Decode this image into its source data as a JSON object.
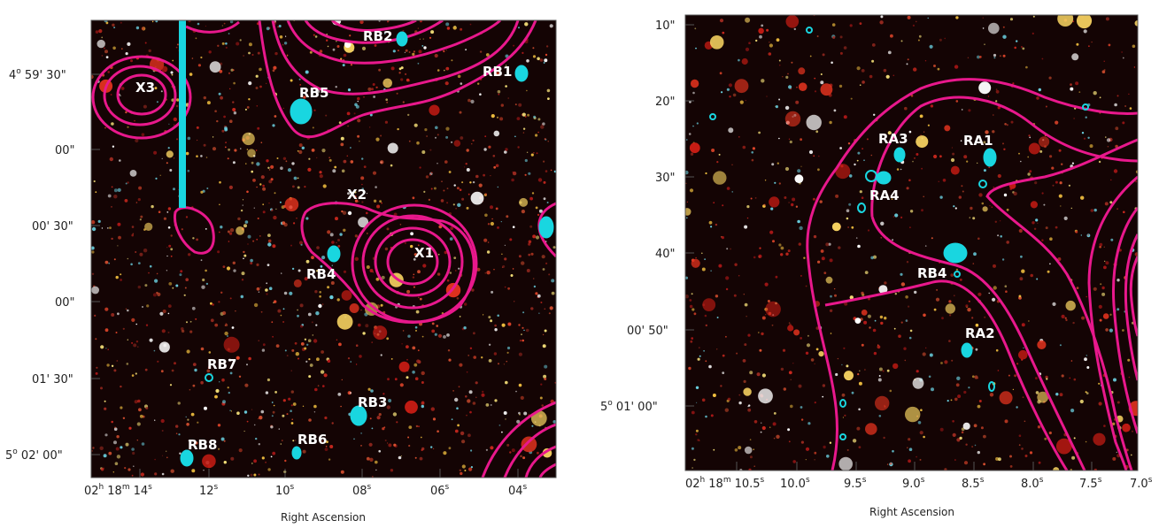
{
  "left": {
    "ra_ticks": [
      "02h 18m 14s",
      "12s",
      "10s",
      "08s",
      "06s",
      "04s"
    ],
    "ra_tick_parts": [
      {
        "h": "02",
        "hs": "h",
        "m": "18",
        "ms": "m",
        "s": "14",
        "ss": "s"
      },
      {
        "s": "12",
        "ss": "s"
      },
      {
        "s": "10",
        "ss": "s"
      },
      {
        "s": "08",
        "ss": "s"
      },
      {
        "s": "06",
        "ss": "s"
      },
      {
        "s": "04",
        "ss": "s"
      }
    ],
    "dec_ticks": [
      "4o 59' 30\"",
      "00\"",
      "00' 30\"",
      "00\"",
      "01' 30\"",
      "5o 02' 00\""
    ],
    "dec_tick_parts": [
      {
        "deg": "4",
        "degs": "o",
        "rest": " 59' 30\""
      },
      {
        "rest": "00\""
      },
      {
        "rest": "00' 30\""
      },
      {
        "rest": "00\""
      },
      {
        "rest": "01' 30\""
      },
      {
        "deg": "5",
        "degs": "o",
        "rest": " 02' 00\""
      }
    ],
    "xlabel": "Right Ascension",
    "sources": [
      "X3",
      "RB2",
      "RB1",
      "RB5",
      "X2",
      "X1",
      "RB4",
      "RB7",
      "RB3",
      "RB8",
      "RB6"
    ]
  },
  "right": {
    "ra_ticks": [
      "02h 18m 10.5s",
      "10.0s",
      "9.5s",
      "9.0s",
      "8.5s",
      "8.0s",
      "7.5s",
      "7.0s"
    ],
    "ra_tick_parts": [
      {
        "h": "02",
        "hs": "h",
        "m": "18",
        "ms": "m",
        "s": "10.5",
        "ss": "s"
      },
      {
        "s": "10.0",
        "ss": "s"
      },
      {
        "s": "9.5",
        "ss": "s"
      },
      {
        "s": "9.0",
        "ss": "s"
      },
      {
        "s": "8.5",
        "ss": "s"
      },
      {
        "s": "8.0",
        "ss": "s"
      },
      {
        "s": "7.5",
        "ss": "s"
      },
      {
        "s": "7.0",
        "ss": "s"
      }
    ],
    "dec_ticks": [
      "10\"",
      "20\"",
      "30\"",
      "40\"",
      "00' 50\"",
      "5o 01' 00\""
    ],
    "dec_tick_parts": [
      {
        "rest": "10\""
      },
      {
        "rest": "20\""
      },
      {
        "rest": "30\""
      },
      {
        "rest": "40\""
      },
      {
        "rest": "00' 50\""
      },
      {
        "deg": "5",
        "degs": "o",
        "rest": " 01' 00\""
      }
    ],
    "xlabel": "Right Ascension",
    "sources": [
      "RA3",
      "RA1",
      "RA4",
      "RB4",
      "RA2"
    ]
  },
  "colors": {
    "background": "#140404",
    "contour": "#e8188c",
    "cyan": "#19d6e0",
    "labels": "#ffffff"
  }
}
